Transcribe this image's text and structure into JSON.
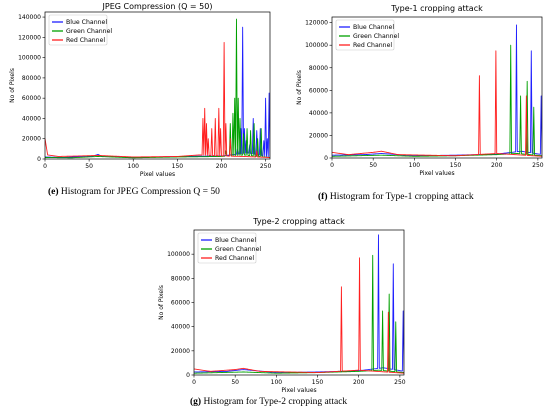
{
  "chart_data": [
    {
      "id": "e",
      "type": "line",
      "title": "JPEG Compression (Q = 50)",
      "xlabel": "Pixel values",
      "ylabel": "No of Pixels",
      "xlim": [
        0,
        255
      ],
      "ylim": [
        0,
        145000
      ],
      "x_ticks": [
        0,
        50,
        100,
        150,
        200,
        250
      ],
      "y_ticks": [
        0,
        20000,
        40000,
        60000,
        80000,
        100000,
        120000,
        140000
      ],
      "legend": "top-left",
      "caption_letter": "(e)",
      "caption_text": "Histogram for JPEG Compression Q = 50",
      "series": [
        {
          "name": "Blue Channel",
          "color": "#1f1fff",
          "baseline": [
            [
              0,
              2000
            ],
            [
              20,
              1500
            ],
            [
              55,
              3000
            ],
            [
              60,
              4500
            ],
            [
              65,
              2500
            ],
            [
              100,
              1500
            ],
            [
              150,
              2500
            ],
            [
              200,
              3000
            ],
            [
              230,
              6000
            ],
            [
              255,
              2000
            ]
          ],
          "peaks": [
            [
              218,
              10000
            ],
            [
              222,
              30000
            ],
            [
              224,
              130000
            ],
            [
              226,
              30000
            ],
            [
              228,
              18000
            ],
            [
              232,
              14000
            ],
            [
              236,
              40000
            ],
            [
              240,
              28000
            ],
            [
              244,
              30000
            ],
            [
              248,
              18000
            ],
            [
              250,
              60000
            ],
            [
              252,
              20000
            ],
            [
              254,
              65000
            ]
          ]
        },
        {
          "name": "Green Channel",
          "color": "#00a000",
          "baseline": [
            [
              0,
              1500
            ],
            [
              30,
              1200
            ],
            [
              60,
              2500
            ],
            [
              100,
              1200
            ],
            [
              150,
              2000
            ],
            [
              200,
              2500
            ],
            [
              225,
              4000
            ],
            [
              255,
              1500
            ]
          ],
          "peaks": [
            [
              205,
              8000
            ],
            [
              210,
              35000
            ],
            [
              213,
              45000
            ],
            [
              215,
              60000
            ],
            [
              217,
              138000
            ],
            [
              219,
              60000
            ],
            [
              221,
              40000
            ],
            [
              225,
              25000
            ],
            [
              229,
              30000
            ],
            [
              233,
              28000
            ],
            [
              237,
              35000
            ],
            [
              241,
              20000
            ],
            [
              245,
              30000
            ]
          ]
        },
        {
          "name": "Red Channel",
          "color": "#ff1f1f",
          "baseline": [
            [
              0,
              20000
            ],
            [
              3,
              4000
            ],
            [
              15,
              2500
            ],
            [
              40,
              3000
            ],
            [
              60,
              3500
            ],
            [
              100,
              2000
            ],
            [
              150,
              2500
            ],
            [
              175,
              4000
            ],
            [
              200,
              3000
            ],
            [
              225,
              2500
            ],
            [
              255,
              1500
            ]
          ],
          "peaks": [
            [
              179,
              40000
            ],
            [
              181,
              50000
            ],
            [
              183,
              35000
            ],
            [
              185,
              20000
            ],
            [
              189,
              30000
            ],
            [
              193,
              40000
            ],
            [
              197,
              50000
            ],
            [
              199,
              30000
            ],
            [
              203,
              115000
            ],
            [
              205,
              35000
            ],
            [
              210,
              20000
            ],
            [
              240,
              8000
            ]
          ]
        }
      ]
    },
    {
      "id": "f",
      "type": "line",
      "title": "Type-1 cropping attack",
      "xlabel": "Pixel values",
      "ylabel": "No of Pixels",
      "xlim": [
        0,
        255
      ],
      "ylim": [
        0,
        125000
      ],
      "x_ticks": [
        0,
        50,
        100,
        150,
        200,
        250
      ],
      "y_ticks": [
        0,
        20000,
        40000,
        60000,
        80000,
        100000,
        120000
      ],
      "legend": "top-left",
      "caption_letter": "(f)",
      "caption_text": "Histogram for Type-1 cropping attack",
      "series": [
        {
          "name": "Blue Channel",
          "color": "#1f1fff",
          "baseline": [
            [
              0,
              2500
            ],
            [
              40,
              3000
            ],
            [
              60,
              4000
            ],
            [
              100,
              2000
            ],
            [
              150,
              2500
            ],
            [
              200,
              3500
            ],
            [
              230,
              6000
            ],
            [
              255,
              3000
            ]
          ],
          "peaks": [
            [
              224,
              118000
            ],
            [
              242,
              95000
            ],
            [
              254,
              55000
            ]
          ]
        },
        {
          "name": "Green Channel",
          "color": "#00a000",
          "baseline": [
            [
              0,
              1500
            ],
            [
              60,
              2500
            ],
            [
              100,
              1500
            ],
            [
              150,
              2000
            ],
            [
              200,
              3000
            ],
            [
              225,
              4000
            ],
            [
              255,
              2000
            ]
          ],
          "peaks": [
            [
              217,
              100000
            ],
            [
              229,
              55000
            ],
            [
              237,
              68000
            ],
            [
              245,
              45000
            ]
          ]
        },
        {
          "name": "Red Channel",
          "color": "#ff1f1f",
          "baseline": [
            [
              0,
              5000
            ],
            [
              20,
              3000
            ],
            [
              50,
              5000
            ],
            [
              60,
              6000
            ],
            [
              80,
              3000
            ],
            [
              150,
              2000
            ],
            [
              175,
              3000
            ],
            [
              200,
              4000
            ],
            [
              255,
              1500
            ]
          ],
          "peaks": [
            [
              179,
              73000
            ],
            [
              199,
              95000
            ],
            [
              236,
              55000
            ]
          ]
        }
      ]
    },
    {
      "id": "g",
      "type": "line",
      "title": "Type-2 cropping attack",
      "xlabel": "Pixel values",
      "ylabel": "No of Pixels",
      "xlim": [
        0,
        255
      ],
      "ylim": [
        0,
        120000
      ],
      "x_ticks": [
        0,
        50,
        100,
        150,
        200,
        250
      ],
      "y_ticks": [
        0,
        20000,
        40000,
        60000,
        80000,
        100000
      ],
      "legend": "top-left",
      "caption_letter": "(g)",
      "caption_text": "Histogram for Type-2 cropping attack",
      "series": [
        {
          "name": "Blue Channel",
          "color": "#1f1fff",
          "baseline": [
            [
              0,
              2500
            ],
            [
              40,
              3000
            ],
            [
              60,
              4500
            ],
            [
              100,
              2000
            ],
            [
              150,
              2500
            ],
            [
              200,
              3500
            ],
            [
              230,
              6000
            ],
            [
              255,
              3000
            ]
          ],
          "peaks": [
            [
              224,
              116000
            ],
            [
              242,
              92000
            ],
            [
              254,
              53000
            ]
          ]
        },
        {
          "name": "Green Channel",
          "color": "#00a000",
          "baseline": [
            [
              0,
              1500
            ],
            [
              60,
              2500
            ],
            [
              100,
              1500
            ],
            [
              150,
              2000
            ],
            [
              200,
              3000
            ],
            [
              225,
              4000
            ],
            [
              255,
              2000
            ]
          ],
          "peaks": [
            [
              217,
              99000
            ],
            [
              229,
              53000
            ],
            [
              237,
              67000
            ],
            [
              245,
              44000
            ]
          ]
        },
        {
          "name": "Red Channel",
          "color": "#ff1f1f",
          "baseline": [
            [
              0,
              5000
            ],
            [
              20,
              3000
            ],
            [
              50,
              4500
            ],
            [
              60,
              5500
            ],
            [
              80,
              3000
            ],
            [
              150,
              2000
            ],
            [
              175,
              3000
            ],
            [
              200,
              4000
            ],
            [
              255,
              1500
            ]
          ],
          "peaks": [
            [
              179,
              73000
            ],
            [
              201,
              97000
            ],
            [
              236,
              52000
            ]
          ]
        }
      ]
    }
  ]
}
